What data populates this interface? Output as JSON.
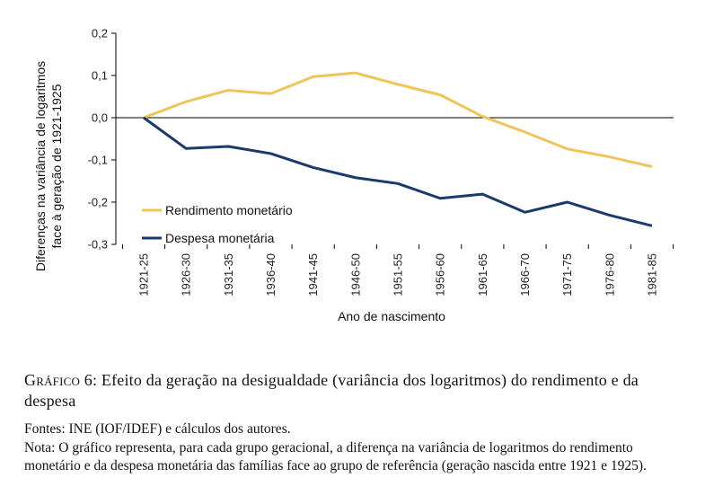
{
  "chart_data": {
    "type": "line",
    "ylabel_lines": [
      "Diferenças na variância de logaritmos",
      "face à geração de 1921-1925"
    ],
    "xlabel": "Ano de nascimento",
    "categories": [
      "1921-25",
      "1926-30",
      "1931-35",
      "1936-40",
      "1941-45",
      "1946-50",
      "1951-55",
      "1956-60",
      "1961-65",
      "1966-70",
      "1971-75",
      "1976-80",
      "1981-85"
    ],
    "ylim": [
      -0.3,
      0.2
    ],
    "yticks": [
      0.2,
      0.1,
      0.0,
      -0.1,
      -0.2,
      -0.3
    ],
    "ytick_labels": [
      "0,2",
      "0,1",
      "0,0",
      "-0,1",
      "-0,2",
      "-0,3"
    ],
    "grid": false,
    "legend_position": "lower-left",
    "series": [
      {
        "name": "Rendimento monetário",
        "color": "#EFC55A",
        "values": [
          0.0,
          0.038,
          0.065,
          0.057,
          0.097,
          0.106,
          0.079,
          0.054,
          0.003,
          -0.034,
          -0.074,
          -0.093,
          -0.116
        ]
      },
      {
        "name": "Despesa monetária",
        "color": "#1B3A6B",
        "values": [
          0.0,
          -0.073,
          -0.068,
          -0.085,
          -0.118,
          -0.142,
          -0.156,
          -0.191,
          -0.181,
          -0.224,
          -0.2,
          -0.231,
          -0.256
        ]
      }
    ]
  },
  "caption": {
    "label": "Gráfico 6:",
    "text": "Efeito da geração na desigualdade (variância dos logaritmos) do rendimento e da despesa"
  },
  "sources": "Fontes: INE (IOF/IDEF) e cálculos dos autores.",
  "note": "Nota: O gráfico representa, para cada grupo geracional, a diferença na variância de logaritmos do rendimento monetário e da despesa monetária das famílias face ao grupo de referência (geração nascida entre 1921 e 1925)."
}
